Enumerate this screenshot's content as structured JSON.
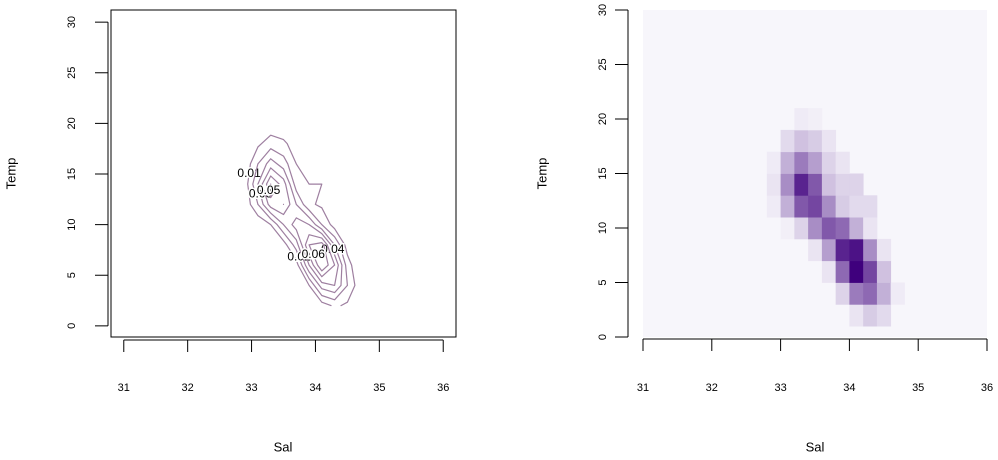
{
  "chart_data": [
    {
      "type": "contour",
      "xlabel": "Sal",
      "ylabel": "Temp",
      "color": "#9e7fa0",
      "x": [
        32.9,
        33.1,
        33.3,
        33.5,
        33.7,
        33.9,
        34.1,
        34.3,
        34.5,
        34.7
      ],
      "y": [
        2,
        4,
        6,
        8,
        10,
        12,
        14,
        16,
        18,
        20
      ],
      "z": [
        [
          0,
          0,
          0,
          0,
          0,
          0,
          0.005,
          0.012,
          0.008,
          0
        ],
        [
          0,
          0,
          0,
          0,
          0,
          0.01,
          0.035,
          0.04,
          0.02,
          0.003
        ],
        [
          0,
          0,
          0,
          0,
          0.005,
          0.04,
          0.07,
          0.05,
          0.015,
          0
        ],
        [
          0,
          0,
          0,
          0.005,
          0.025,
          0.06,
          0.065,
          0.03,
          0.005,
          0
        ],
        [
          0,
          0.002,
          0.01,
          0.03,
          0.045,
          0.04,
          0.02,
          0.005,
          0,
          0
        ],
        [
          0.003,
          0.02,
          0.045,
          0.05,
          0.03,
          0.012,
          0.008,
          0.008,
          0,
          0
        ],
        [
          0.005,
          0.03,
          0.06,
          0.045,
          0.015,
          0.01,
          0.01,
          0,
          0,
          0
        ],
        [
          0.003,
          0.02,
          0.035,
          0.025,
          0.01,
          0.005,
          0,
          0,
          0,
          0
        ],
        [
          0,
          0.008,
          0.015,
          0.012,
          0.005,
          0,
          0,
          0,
          0,
          0
        ],
        [
          0,
          0,
          0.003,
          0.002,
          0,
          0,
          0,
          0,
          0,
          0
        ]
      ],
      "levels": [
        0.01,
        0.02,
        0.03,
        0.04,
        0.05,
        0.06
      ],
      "xlim": [
        30.8,
        36.2
      ],
      "ylim": [
        -1.1,
        31.2
      ],
      "xticks": [
        31,
        32,
        33,
        34,
        35,
        36
      ],
      "yticks": [
        0,
        5,
        10,
        15,
        20,
        25,
        30
      ]
    },
    {
      "type": "image",
      "xlabel": "Sal",
      "ylabel": "Temp",
      "colors": [
        "#f7f6fb",
        "#3f007d"
      ],
      "x": [
        32.9,
        33.1,
        33.3,
        33.5,
        33.7,
        33.9,
        34.1,
        34.3,
        34.5,
        34.7
      ],
      "y": [
        2,
        4,
        6,
        8,
        10,
        12,
        14,
        16,
        18,
        20
      ],
      "z": [
        [
          0,
          0,
          0,
          0,
          0,
          0,
          0.005,
          0.012,
          0.008,
          0
        ],
        [
          0,
          0,
          0,
          0,
          0,
          0.01,
          0.035,
          0.04,
          0.02,
          0.003
        ],
        [
          0,
          0,
          0,
          0,
          0.005,
          0.04,
          0.07,
          0.05,
          0.015,
          0
        ],
        [
          0,
          0,
          0,
          0.005,
          0.025,
          0.06,
          0.065,
          0.03,
          0.005,
          0
        ],
        [
          0,
          0.002,
          0.01,
          0.03,
          0.045,
          0.04,
          0.02,
          0.005,
          0,
          0
        ],
        [
          0.003,
          0.02,
          0.045,
          0.05,
          0.03,
          0.012,
          0.008,
          0.008,
          0,
          0
        ],
        [
          0.005,
          0.03,
          0.06,
          0.045,
          0.015,
          0.01,
          0.01,
          0,
          0,
          0
        ],
        [
          0.003,
          0.02,
          0.035,
          0.025,
          0.01,
          0.005,
          0,
          0,
          0,
          0
        ],
        [
          0,
          0.008,
          0.015,
          0.012,
          0.005,
          0,
          0,
          0,
          0,
          0
        ],
        [
          0,
          0,
          0.003,
          0.002,
          0,
          0,
          0,
          0,
          0,
          0
        ]
      ],
      "xlim": [
        31,
        36
      ],
      "ylim": [
        0,
        30
      ],
      "xticks": [
        31,
        32,
        33,
        34,
        35,
        36
      ],
      "yticks": [
        0,
        5,
        10,
        15,
        20,
        25,
        30
      ]
    }
  ]
}
